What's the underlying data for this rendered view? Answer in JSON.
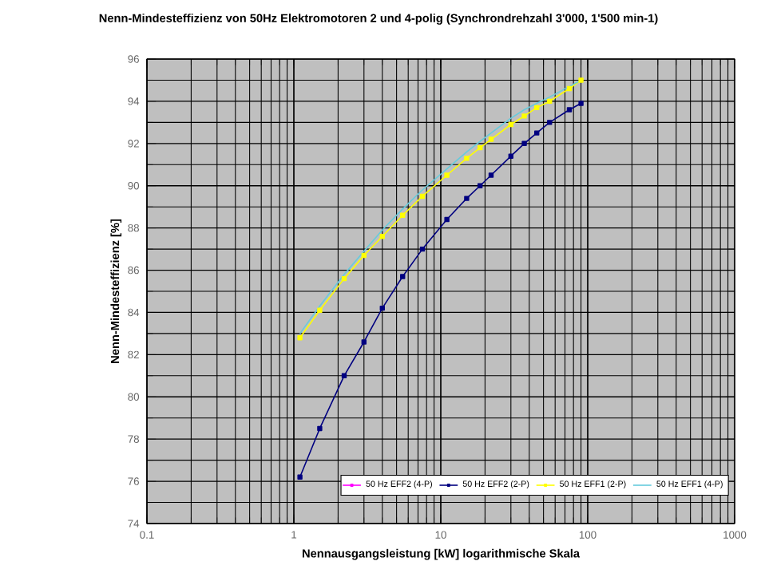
{
  "chart_data": {
    "type": "line",
    "title": "Nenn-Mindesteffizienz von 50Hz Elektromotoren 2 und 4-polig (Synchrondrehzahl 3'000, 1'500 min-1)",
    "xlabel": "Nennausgangsleistung [kW] logarithmische Skala",
    "ylabel": "Nenn-Mindesteffizienz [%]",
    "log": "x",
    "grid": true,
    "legend": "bottom right",
    "marker": "square",
    "x": [
      1.1,
      1.5,
      2.2,
      3,
      4,
      5.5,
      7.5,
      11,
      15,
      18.5,
      22,
      30,
      37,
      45,
      55,
      75,
      90
    ],
    "xlim": [
      0.1,
      1000
    ],
    "xticks": [
      0.1,
      1,
      10,
      100,
      1000
    ],
    "ylim": [
      74,
      96
    ],
    "yticks": [
      74,
      76,
      78,
      80,
      82,
      84,
      86,
      88,
      90,
      92,
      94,
      96
    ],
    "series": [
      {
        "name": "50 Hz EFF2 (4-P)",
        "color": "#ff00ff",
        "values": [
          null,
          null,
          null,
          null,
          null,
          null,
          null,
          null,
          null,
          null,
          null,
          null,
          null,
          null,
          null,
          null,
          null
        ]
      },
      {
        "name": "50 Hz EFF2 (2-P)",
        "color": "#000080",
        "values": [
          76.2,
          78.5,
          81.0,
          82.6,
          84.2,
          85.7,
          87.0,
          88.4,
          89.4,
          90.0,
          90.5,
          91.4,
          92.0,
          92.5,
          93.0,
          93.6,
          93.9
        ]
      },
      {
        "name": "50 Hz EFF1 (2-P)",
        "color": "#ffff00",
        "values": [
          82.8,
          84.1,
          85.6,
          86.7,
          87.6,
          88.6,
          89.5,
          90.5,
          91.3,
          91.8,
          92.2,
          92.9,
          93.3,
          93.7,
          94.0,
          94.6,
          95.0
        ]
      },
      {
        "name": "50 Hz EFF1 (4-P)",
        "color": "#66ccdd",
        "marker": "none",
        "values": [
          83.0,
          84.3,
          85.8,
          86.9,
          87.9,
          88.9,
          89.8,
          90.8,
          91.6,
          92.1,
          92.5,
          93.2,
          93.6,
          93.9,
          94.2,
          94.7,
          95.0
        ]
      }
    ]
  }
}
